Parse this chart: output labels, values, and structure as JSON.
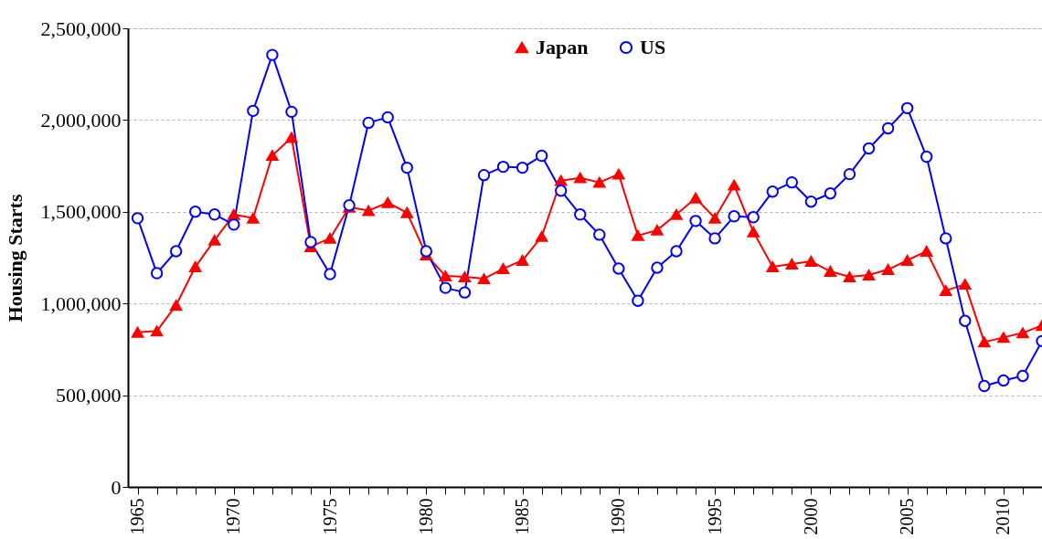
{
  "chart_data": {
    "type": "line",
    "ylabel": "Housing Starts",
    "x": [
      1965,
      1966,
      1967,
      1968,
      1969,
      1970,
      1971,
      1972,
      1973,
      1974,
      1975,
      1976,
      1977,
      1978,
      1979,
      1980,
      1981,
      1982,
      1983,
      1984,
      1985,
      1986,
      1987,
      1988,
      1989,
      1990,
      1991,
      1992,
      1993,
      1994,
      1995,
      1996,
      1997,
      1998,
      1999,
      2000,
      2001,
      2002,
      2003,
      2004,
      2005,
      2006,
      2007,
      2008,
      2009,
      2010,
      2011,
      2012
    ],
    "series": [
      {
        "name": "Japan",
        "color": "#ff0000",
        "marker": "triangle",
        "values": [
          843000,
          850000,
          990000,
          1200000,
          1345000,
          1485000,
          1465000,
          1807000,
          1905000,
          1310000,
          1355000,
          1525000,
          1506000,
          1550000,
          1495000,
          1265000,
          1150000,
          1145000,
          1135000,
          1190000,
          1235000,
          1365000,
          1670000,
          1685000,
          1660000,
          1705000,
          1370000,
          1400000,
          1485000,
          1575000,
          1465000,
          1645000,
          1390000,
          1200000,
          1215000,
          1230000,
          1175000,
          1145000,
          1155000,
          1185000,
          1235000,
          1285000,
          1070000,
          1105000,
          790000,
          815000,
          840000,
          880000
        ]
      },
      {
        "name": "US",
        "color": "#0000ff",
        "marker": "circle",
        "values": [
          1465000,
          1165000,
          1285000,
          1500000,
          1485000,
          1430000,
          2050000,
          2355000,
          2045000,
          1335000,
          1160000,
          1535000,
          1985000,
          2015000,
          1740000,
          1285000,
          1085000,
          1060000,
          1700000,
          1745000,
          1740000,
          1805000,
          1615000,
          1485000,
          1375000,
          1190000,
          1015000,
          1195000,
          1285000,
          1450000,
          1355000,
          1475000,
          1470000,
          1610000,
          1660000,
          1555000,
          1600000,
          1705000,
          1845000,
          1955000,
          2065000,
          1800000,
          1355000,
          905000,
          550000,
          580000,
          605000,
          795000
        ]
      }
    ],
    "xlim": [
      1964.5,
      2012
    ],
    "xticks": [
      1965,
      {
        "value": 1966,
        "label": null
      },
      {
        "value": 1967,
        "label": null
      },
      {
        "value": 1968,
        "label": null
      },
      {
        "value": 1969,
        "label": null
      },
      1970,
      {
        "value": 1971,
        "label": null
      },
      {
        "value": 1972,
        "label": null
      },
      {
        "value": 1973,
        "label": null
      },
      {
        "value": 1974,
        "label": null
      },
      1975,
      {
        "value": 1976,
        "label": null
      },
      {
        "value": 1977,
        "label": null
      },
      {
        "value": 1978,
        "label": null
      },
      {
        "value": 1979,
        "label": null
      },
      1980,
      {
        "value": 1981,
        "label": null
      },
      {
        "value": 1982,
        "label": null
      },
      {
        "value": 1983,
        "label": null
      },
      {
        "value": 1984,
        "label": null
      },
      1985,
      {
        "value": 1986,
        "label": null
      },
      {
        "value": 1987,
        "label": null
      },
      {
        "value": 1988,
        "label": null
      },
      {
        "value": 1989,
        "label": null
      },
      1990,
      {
        "value": 1991,
        "label": null
      },
      {
        "value": 1992,
        "label": null
      },
      {
        "value": 1993,
        "label": null
      },
      {
        "value": 1994,
        "label": null
      },
      1995,
      {
        "value": 1996,
        "label": null
      },
      {
        "value": 1997,
        "label": null
      },
      {
        "value": 1998,
        "label": null
      },
      {
        "value": 1999,
        "label": null
      },
      2000,
      {
        "value": 2001,
        "label": null
      },
      {
        "value": 2002,
        "label": null
      },
      {
        "value": 2003,
        "label": null
      },
      {
        "value": 2004,
        "label": null
      },
      2005,
      {
        "value": 2006,
        "label": null
      },
      {
        "value": 2007,
        "label": null
      },
      {
        "value": 2008,
        "label": null
      },
      {
        "value": 2009,
        "label": null
      },
      2010,
      {
        "value": 2011,
        "label": null
      }
    ],
    "ylim": [
      0,
      2500000
    ],
    "yticks": [
      0,
      {
        "value": 500000,
        "label": "500,000"
      },
      {
        "value": 1000000,
        "label": "1,000,000"
      },
      {
        "value": 1500000,
        "label": "1,500,000"
      },
      {
        "value": 2000000,
        "label": "2,000,000"
      },
      {
        "value": 2500000,
        "label": "2,500,000"
      }
    ],
    "grid": "y",
    "legend": "top",
    "line_style": "solid"
  }
}
